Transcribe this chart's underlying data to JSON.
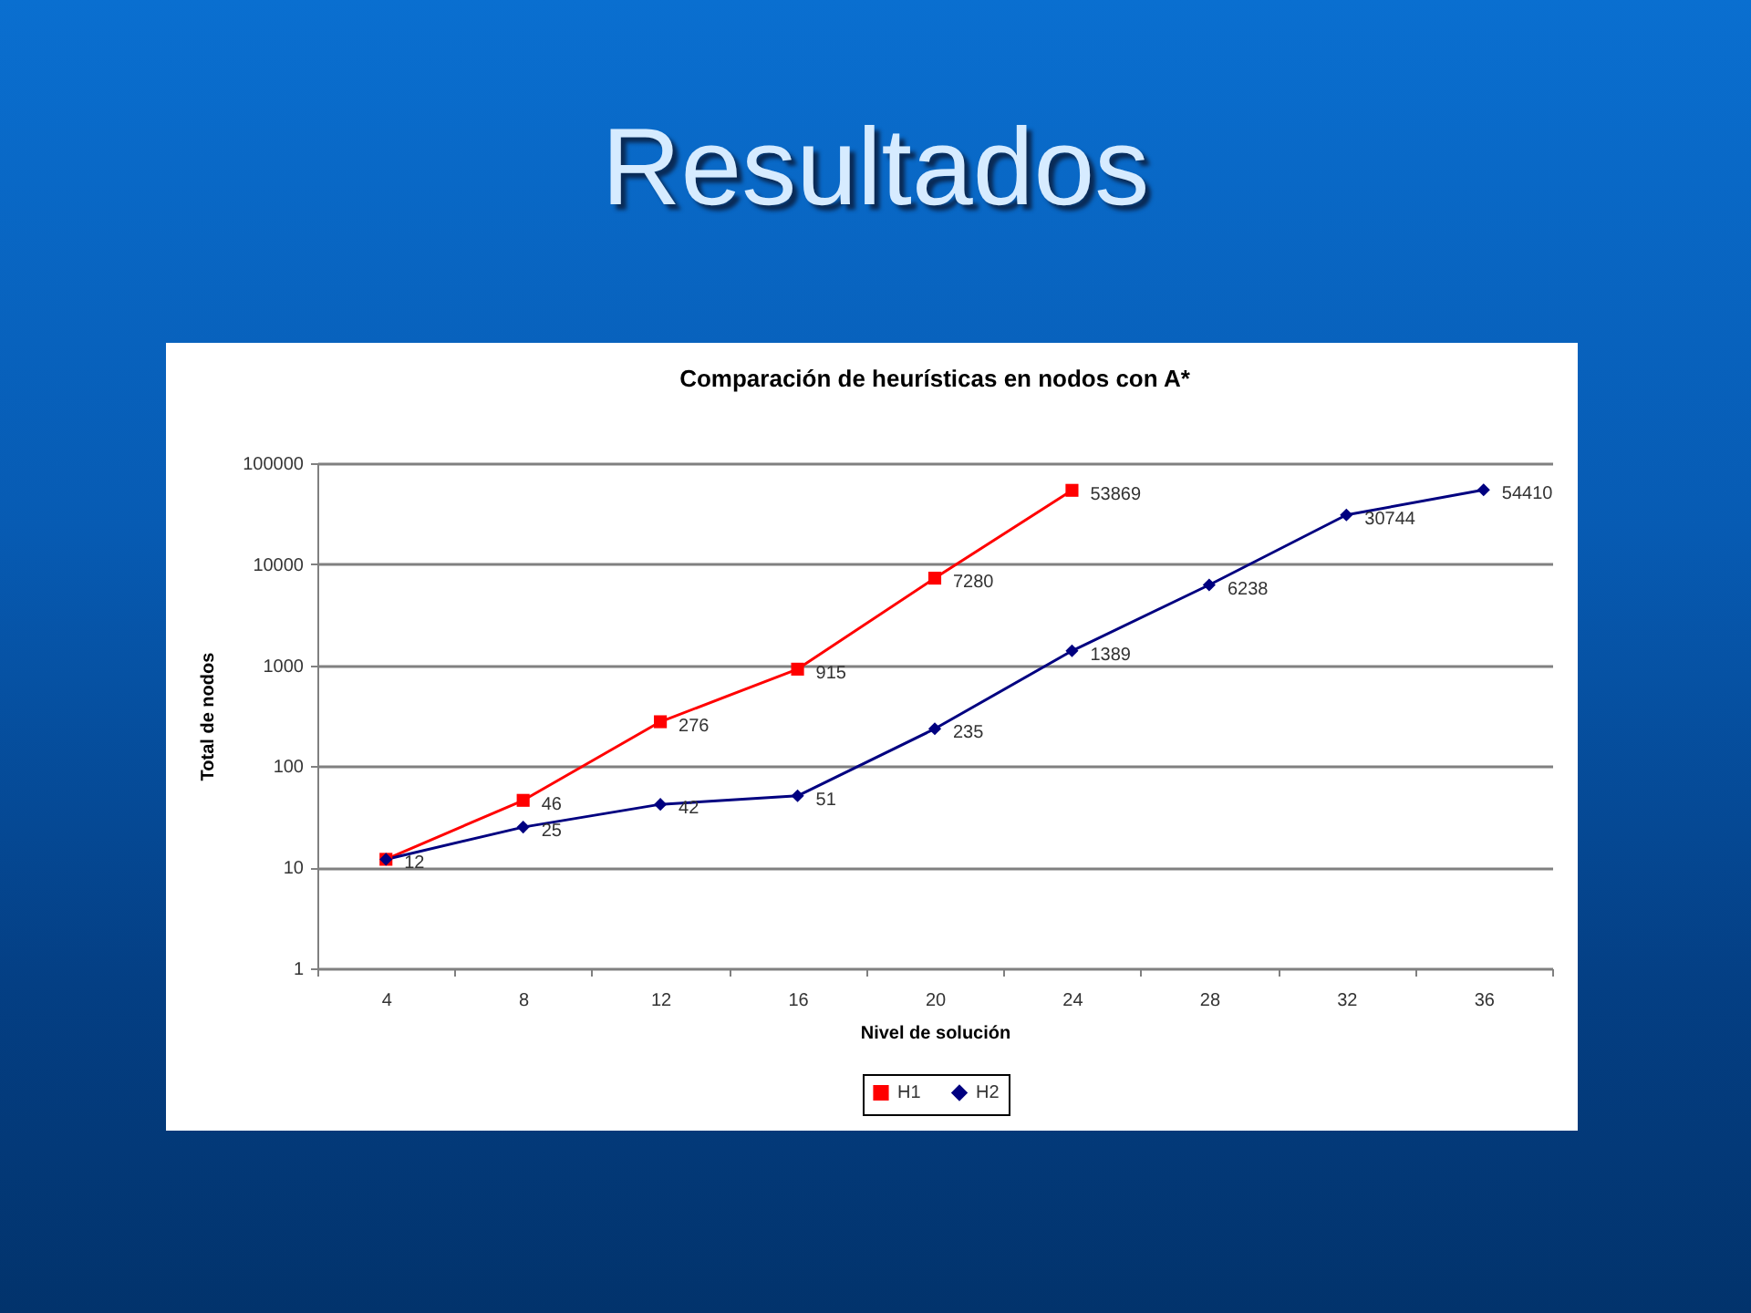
{
  "chart_data": {
    "type": "line",
    "title": "Resultados",
    "subtitle": "Comparación de heurísticas en nodos con A*",
    "xlabel": "Nivel de solución",
    "ylabel": "Total de nodos",
    "categories": [
      "4",
      "8",
      "12",
      "16",
      "20",
      "24",
      "28",
      "32",
      "36"
    ],
    "series": [
      {
        "name": "H1",
        "color": "#ff0000",
        "marker": "square",
        "values": [
          12,
          46,
          276,
          915,
          7280,
          53869,
          null,
          null,
          null
        ],
        "value_labels": [
          null,
          "46",
          "276",
          "915",
          "7280",
          "53869",
          null,
          null,
          null
        ]
      },
      {
        "name": "H2",
        "color": "#000080",
        "marker": "diamond",
        "values": [
          12,
          25,
          42,
          51,
          235,
          1389,
          6238,
          30744,
          54410
        ],
        "value_labels": [
          "12",
          "25",
          "42",
          "51",
          "235",
          "1389",
          "6238",
          "30744",
          "54410"
        ]
      }
    ],
    "log": "y",
    "ylim": [
      1,
      100000
    ],
    "yticks": [
      1,
      10,
      100,
      1000,
      10000,
      100000
    ],
    "grid": "y",
    "legend": "bottom",
    "line_style": "solid"
  }
}
